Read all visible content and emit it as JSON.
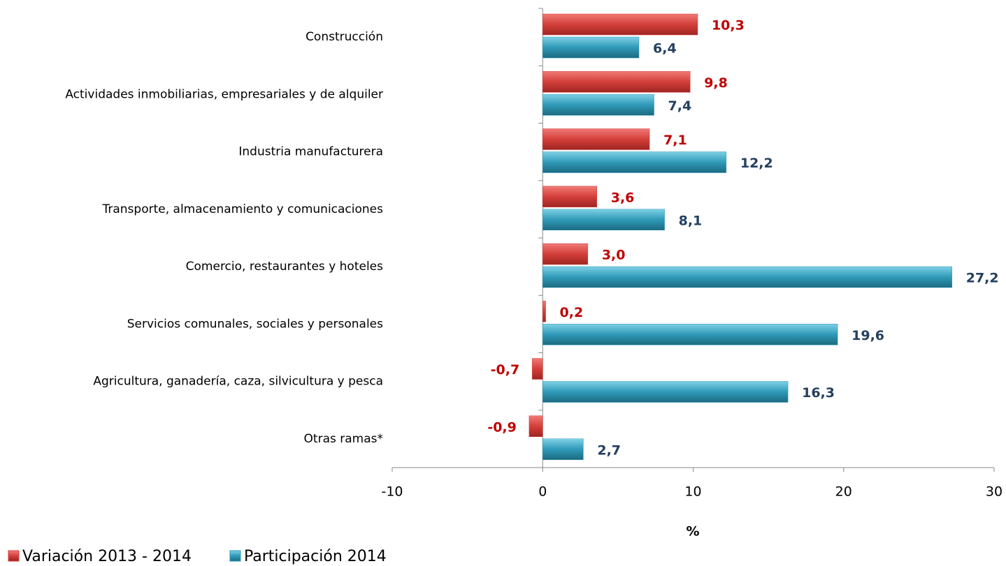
{
  "chart_data": {
    "type": "hbar",
    "categories": [
      "Construcción",
      "Actividades inmobiliarias, empresariales y de alquiler",
      "Industria manufacturera",
      "Transporte, almacenamiento y comunicaciones",
      "Comercio, restaurantes y hoteles",
      "Servicios comunales, sociales y personales",
      "Agricultura, ganadería, caza, silvicultura y pesca",
      "Otras ramas*"
    ],
    "series": [
      {
        "name": "Variación 2013 - 2014",
        "color": "#d43f3a",
        "label_color": "#c00000",
        "values": [
          10.3,
          9.8,
          7.1,
          3.6,
          3.0,
          0.2,
          -0.7,
          -0.9
        ],
        "value_labels": [
          "10,3",
          "9,8",
          "7,1",
          "3,6",
          "3,0",
          "0,2",
          "-0,7",
          "-0,9"
        ]
      },
      {
        "name": "Participación 2014",
        "color": "#2f9ab8",
        "label_color": "#243f60",
        "values": [
          6.4,
          7.4,
          12.2,
          8.1,
          27.2,
          19.6,
          16.3,
          2.7
        ],
        "value_labels": [
          "6,4",
          "7,4",
          "12,2",
          "8,1",
          "27,2",
          "19,6",
          "16,3",
          "2,7"
        ]
      }
    ],
    "xlim": [
      -10,
      30
    ],
    "xticks": [
      -10,
      0,
      10,
      20,
      30
    ],
    "xlabel": "%",
    "legend": "bottom-left"
  }
}
